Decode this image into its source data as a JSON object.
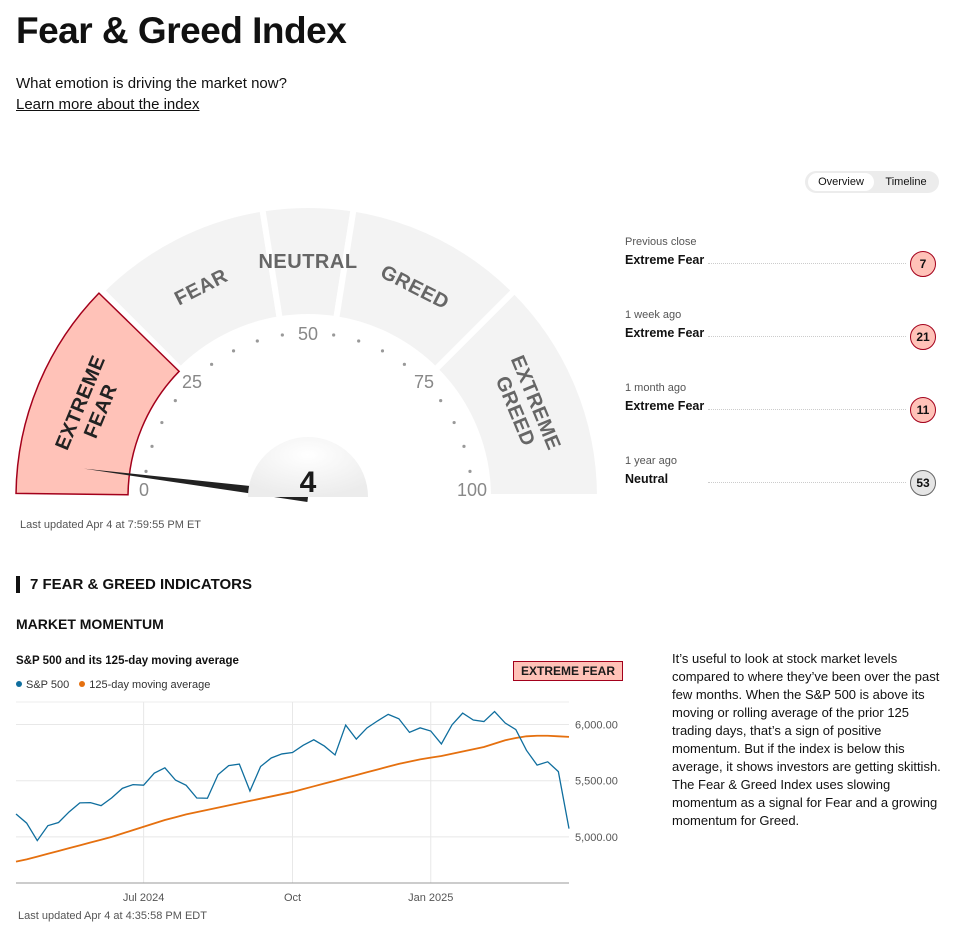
{
  "header": {
    "title": "Fear & Greed Index",
    "subtitle": "What emotion is driving the market now?",
    "link": "Learn more about the index"
  },
  "tabs": [
    "Overview",
    "Timeline"
  ],
  "gauge": {
    "value": 4,
    "ticks": [
      0,
      25,
      50,
      75,
      100
    ],
    "segments": [
      {
        "label": "EXTREME FEAR",
        "range": [
          0,
          25
        ]
      },
      {
        "label": "FEAR",
        "range": [
          25,
          45
        ]
      },
      {
        "label": "NEUTRAL",
        "range": [
          45,
          55
        ]
      },
      {
        "label": "GREED",
        "range": [
          55,
          75
        ]
      },
      {
        "label": "EXTREME GREED",
        "range": [
          75,
          100
        ]
      }
    ],
    "active_color": "#ffc2b8",
    "updated": "Last updated Apr 4 at 7:59:55 PM ET"
  },
  "history": [
    {
      "label": "Previous close",
      "rating": "Extreme Fear",
      "value": 7,
      "color": "#ffc2b8"
    },
    {
      "label": "1 week ago",
      "rating": "Extreme Fear",
      "value": 21,
      "color": "#ffc2b8"
    },
    {
      "label": "1 month ago",
      "rating": "Extreme Fear",
      "value": 11,
      "color": "#ffc2b8"
    },
    {
      "label": "1 year ago",
      "rating": "Neutral",
      "value": 53,
      "color": "#e5e5e5"
    }
  ],
  "indicators": {
    "title": "7 FEAR & GREED INDICATORS",
    "section": "MARKET MOMENTUM",
    "description": "It’s useful to look at stock market levels compared to where they’ve been over the past few months. When the S&P 500 is above its moving or rolling average of the prior 125 trading days, that’s a sign of positive momentum. But if the index is below this average, it shows investors are getting skittish. The Fear & Greed Index uses slowing momentum as a signal for Fear and a growing momentum for Greed."
  },
  "chart_data": {
    "type": "line",
    "title": "S&P 500 and its 125-day moving average",
    "rating": "EXTREME FEAR",
    "categories": [
      null,
      null,
      null,
      null,
      null,
      null,
      null,
      null,
      null,
      null,
      null,
      null,
      "Jul 2024",
      null,
      null,
      null,
      null,
      null,
      null,
      null,
      null,
      null,
      null,
      null,
      null,
      null,
      "Oct",
      null,
      null,
      null,
      null,
      null,
      null,
      null,
      null,
      null,
      null,
      null,
      null,
      "Jan 2025",
      null,
      null,
      null,
      null,
      null,
      null,
      null,
      null,
      null,
      null,
      null,
      null,
      null
    ],
    "series": [
      {
        "name": "S&P 500",
        "color": "#0f6e9e",
        "values": [
          5204,
          5123,
          4967,
          5100,
          5128,
          5223,
          5303,
          5305,
          5278,
          5347,
          5432,
          5465,
          5460,
          5567,
          5615,
          5505,
          5459,
          5346,
          5344,
          5554,
          5634,
          5648,
          5408,
          5626,
          5702,
          5738,
          5751,
          5815,
          5864,
          5808,
          5729,
          5995,
          5870,
          5969,
          6032,
          6090,
          6051,
          5930,
          5970,
          5942,
          5827,
          5997,
          6101,
          6040,
          6026,
          6115,
          6013,
          5955,
          5770,
          5639,
          5668,
          5581,
          5074
        ]
      },
      {
        "name": "125-day moving average",
        "color": "#e5700f",
        "values": [
          4780,
          4800,
          4825,
          4850,
          4875,
          4900,
          4925,
          4950,
          4975,
          5000,
          5030,
          5060,
          5090,
          5120,
          5150,
          5175,
          5200,
          5220,
          5240,
          5260,
          5280,
          5300,
          5320,
          5340,
          5360,
          5380,
          5400,
          5425,
          5450,
          5475,
          5500,
          5525,
          5550,
          5575,
          5600,
          5625,
          5650,
          5670,
          5690,
          5705,
          5720,
          5740,
          5760,
          5780,
          5800,
          5830,
          5860,
          5880,
          5895,
          5900,
          5900,
          5895,
          5890
        ]
      }
    ],
    "ylim": [
      4590,
      6200
    ],
    "yticks": [
      {
        "value": 5000,
        "label": "5,000.00"
      },
      {
        "value": 5500,
        "label": "5,500.00"
      },
      {
        "value": 6000,
        "label": "6,000.00"
      }
    ],
    "grid": true,
    "rating_color": "#ffc2b8",
    "updated": "Last updated Apr 4 at 4:35:58 PM EDT"
  }
}
